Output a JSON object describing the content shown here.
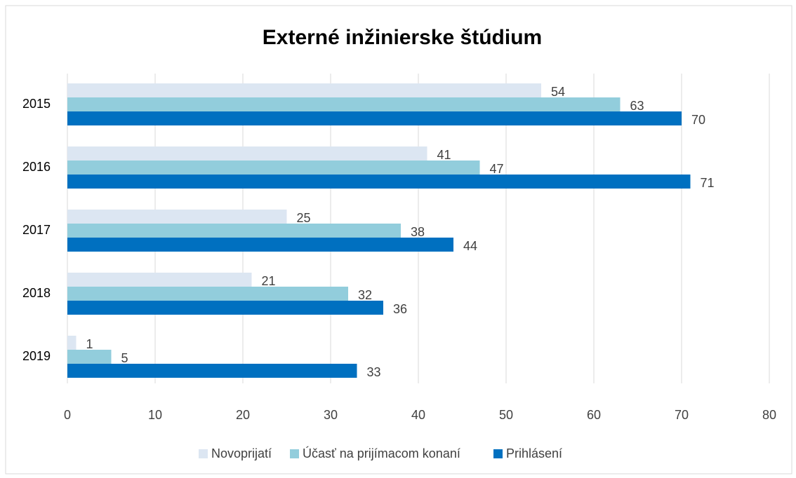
{
  "chart_data": {
    "type": "barh",
    "title": "Externé inžinierske štúdium",
    "categories": [
      "2015",
      "2016",
      "2017",
      "2018",
      "2019"
    ],
    "series": [
      {
        "name": "Novoprijatí",
        "color": "#dce6f2",
        "values": [
          54,
          41,
          25,
          21,
          1
        ]
      },
      {
        "name": "Účasť na prijímacom konaní",
        "color": "#92cddc",
        "values": [
          63,
          47,
          38,
          32,
          5
        ]
      },
      {
        "name": "Prihlásení",
        "color": "#0070c0",
        "values": [
          70,
          71,
          44,
          36,
          33
        ]
      }
    ],
    "xlim": [
      0,
      80
    ],
    "xticks": [
      0,
      10,
      20,
      30,
      40,
      50,
      60,
      70,
      80
    ],
    "grid": true,
    "legend": "bottom"
  }
}
